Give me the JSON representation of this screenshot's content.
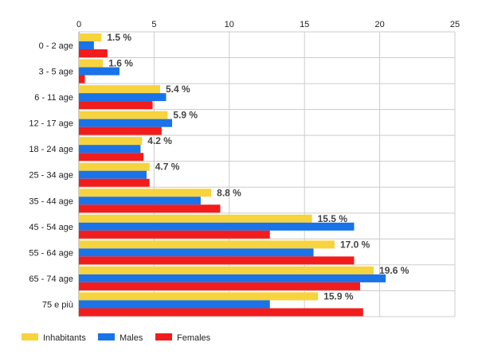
{
  "chart_data": {
    "type": "bar",
    "orientation": "horizontal",
    "categories": [
      "0 - 2 age",
      "3 - 5 age",
      "6 - 11 age",
      "12 - 17 age",
      "18 - 24 age",
      "25 - 34 age",
      "35 - 44 age",
      "45 - 54 age",
      "55 - 64 age",
      "65 - 74 age",
      "75 e più"
    ],
    "series": [
      {
        "name": "Inhabitants",
        "color": "#f7d33d",
        "values": [
          1.5,
          1.6,
          5.4,
          5.9,
          4.2,
          4.7,
          8.8,
          15.5,
          17.0,
          19.6,
          15.9
        ]
      },
      {
        "name": "Males",
        "color": "#1a73e8",
        "values": [
          1.0,
          2.7,
          5.8,
          6.2,
          4.1,
          4.5,
          8.1,
          18.3,
          15.6,
          20.4,
          12.7
        ]
      },
      {
        "name": "Females",
        "color": "#f21c1c",
        "values": [
          1.9,
          0.4,
          4.9,
          5.5,
          4.3,
          4.7,
          9.4,
          12.7,
          18.3,
          18.7,
          18.9
        ]
      }
    ],
    "data_labels": [
      "1.5 %",
      "1.6 %",
      "5.4 %",
      "5.9 %",
      "4.2 %",
      "4.7 %",
      "8.8 %",
      "15.5 %",
      "17.0 %",
      "19.6 %",
      "15.9 %"
    ],
    "x_ticks": [
      "0",
      "5",
      "10",
      "15",
      "20",
      "25"
    ],
    "xlim": [
      0,
      25
    ],
    "grid": true,
    "legend_position": "bottom-left",
    "title": "",
    "xlabel": "",
    "ylabel": ""
  }
}
